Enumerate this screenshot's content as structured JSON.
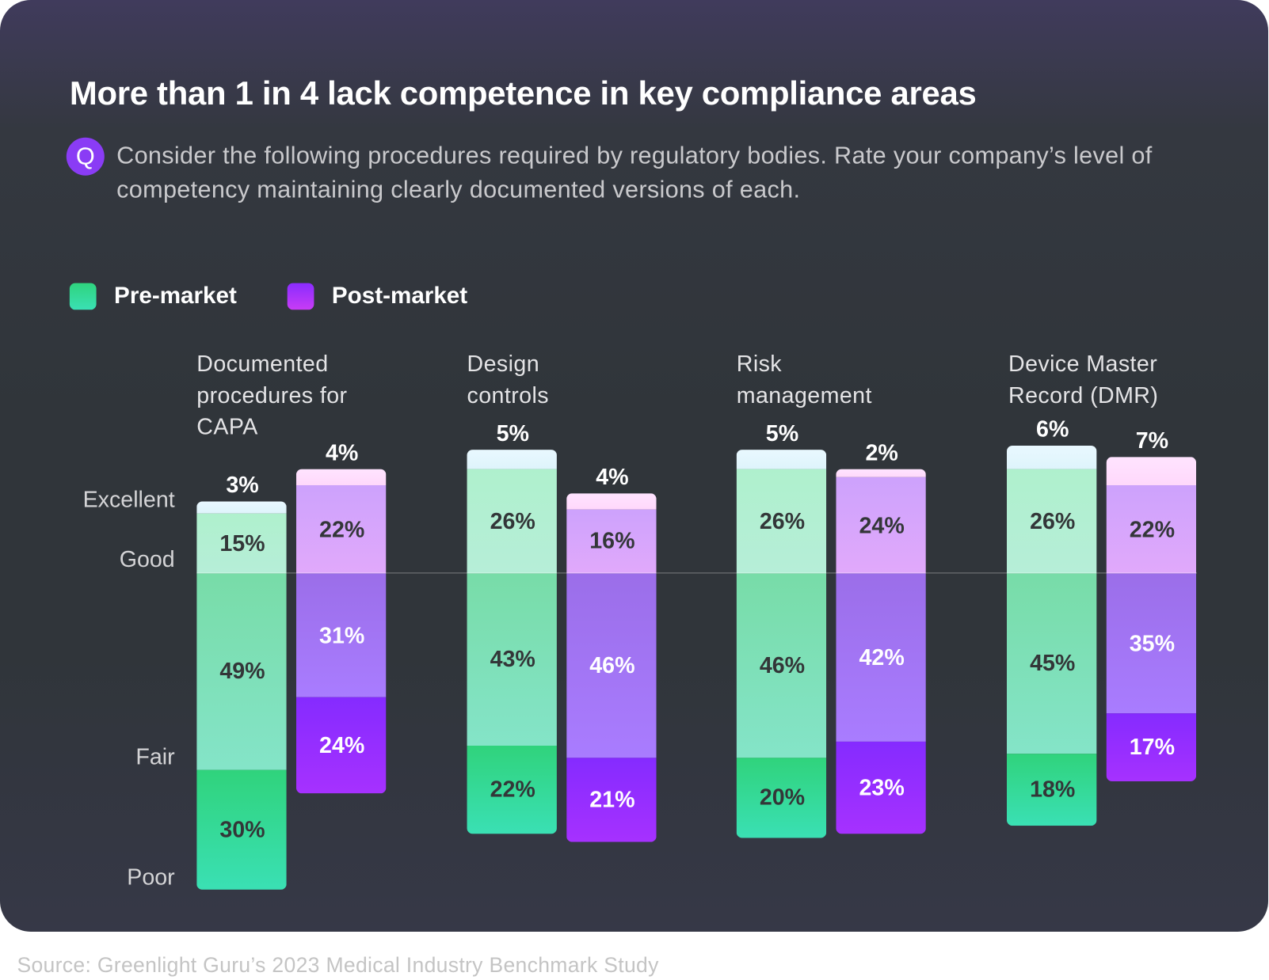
{
  "header": {
    "title": "More than 1 in 4 lack competence in key compliance areas",
    "question_icon": "Q",
    "question": "Consider the following procedures required by regulatory bodies. Rate your company’s level of competency maintaining clearly documented versions of each."
  },
  "source": "Source: Greenlight Guru’s 2023 Medical Industry Benchmark Study",
  "chart_data": {
    "type": "bar",
    "subtype": "diverging-stacked",
    "categories": [
      "Documented procedures for CAPA",
      "Design controls",
      "Risk management",
      "Device Master Record (DMR)"
    ],
    "category_display": [
      "Documented\nprocedures for\nCAPA",
      "Design\ncontrols",
      "Risk\nmanagement",
      "Device Master\nRecord (DMR)"
    ],
    "levels": [
      "Excellent",
      "Good",
      "Fair",
      "Poor"
    ],
    "legend": {
      "position": "top-left",
      "entries": [
        "Pre-market",
        "Post-market"
      ]
    },
    "series": [
      {
        "name": "Pre-market",
        "color": "#33d68a",
        "values": {
          "Excellent": [
            3,
            5,
            5,
            6
          ],
          "Good": [
            15,
            26,
            26,
            26
          ],
          "Fair": [
            49,
            43,
            46,
            45
          ],
          "Poor": [
            30,
            22,
            20,
            18
          ]
        }
      },
      {
        "name": "Post-market",
        "color": "#9330ff",
        "values": {
          "Excellent": [
            4,
            4,
            2,
            7
          ],
          "Good": [
            22,
            16,
            24,
            22
          ],
          "Fair": [
            31,
            46,
            42,
            35
          ],
          "Poor": [
            24,
            21,
            23,
            17
          ]
        }
      }
    ],
    "unit": "%",
    "baseline": "between Good and Fair",
    "grid": false
  },
  "colors": {
    "pre": {
      "Excellent": [
        "#e9f8ff",
        "#def4fb"
      ],
      "Good": [
        "#aff0cd",
        "#b6eed8"
      ],
      "Fair": [
        "#78dca8",
        "#84e4c8"
      ],
      "Poor": [
        "#30d37c",
        "#3ae0b4"
      ]
    },
    "post": {
      "Excellent": [
        "#ffe4ff",
        "#ffd8fb"
      ],
      "Good": [
        "#cda2fc",
        "#e1a9fb"
      ],
      "Fair": [
        "#9b6ee9",
        "#a97cff"
      ],
      "Poor": [
        "#852bff",
        "#a631ff"
      ]
    },
    "text_dark": "#333638",
    "text_light": "#ffffff"
  }
}
